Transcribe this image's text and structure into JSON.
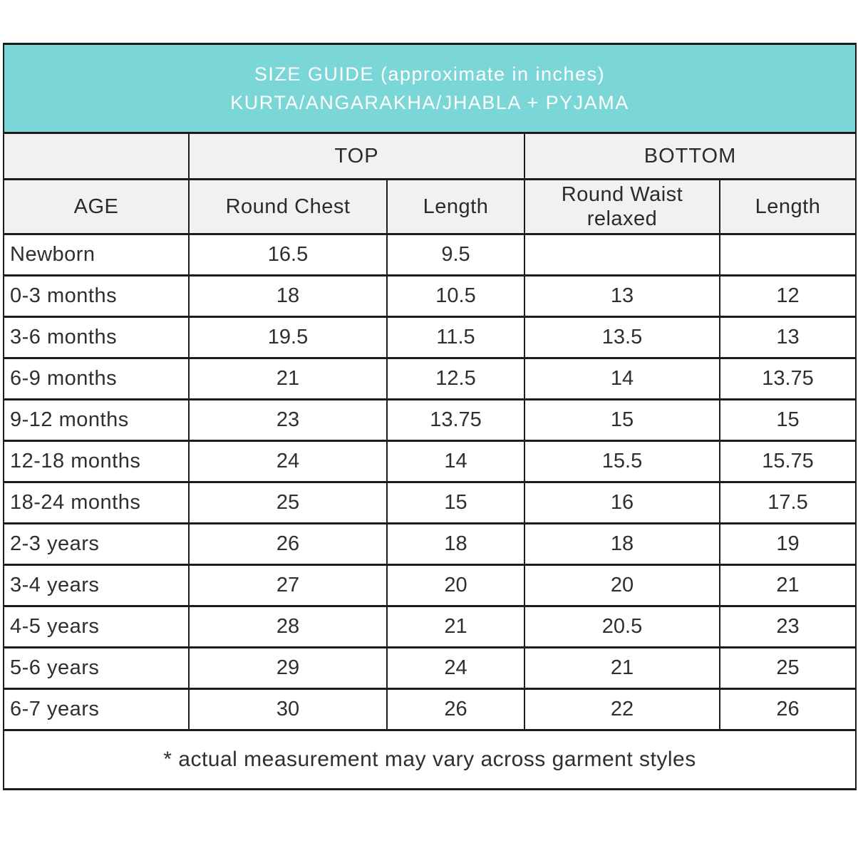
{
  "title": {
    "line1": "SIZE GUIDE (approximate in inches)",
    "line2": "KURTA/ANGARAKHA/JHABLA + PYJAMA"
  },
  "colors": {
    "title_bg": "#7BD6D7",
    "title_text": "#FFFFFF",
    "subheader_bg": "#F1F1F1",
    "border": "#1C1C1C",
    "body_bg": "#FFFFFF"
  },
  "table": {
    "group_headers": {
      "top": "TOP",
      "bottom": "BOTTOM"
    },
    "columns": [
      "AGE",
      "Round Chest",
      "Length",
      "Round Waist relaxed",
      "Length"
    ],
    "rows": [
      [
        "Newborn",
        "16.5",
        "9.5",
        "",
        ""
      ],
      [
        "0-3 months",
        "18",
        "10.5",
        "13",
        "12"
      ],
      [
        "3-6 months",
        "19.5",
        "11.5",
        "13.5",
        "13"
      ],
      [
        "6-9 months",
        "21",
        "12.5",
        "14",
        "13.75"
      ],
      [
        "9-12 months",
        "23",
        "13.75",
        "15",
        "15"
      ],
      [
        "12-18 months",
        "24",
        "14",
        "15.5",
        "15.75"
      ],
      [
        "18-24 months",
        "25",
        "15",
        "16",
        "17.5"
      ],
      [
        "2-3 years",
        "26",
        "18",
        "18",
        "19"
      ],
      [
        "3-4 years",
        "27",
        "20",
        "20",
        "21"
      ],
      [
        "4-5 years",
        "28",
        "21",
        "20.5",
        "23"
      ],
      [
        "5-6 years",
        "29",
        "24",
        "21",
        "25"
      ],
      [
        "6-7 years",
        "30",
        "26",
        "22",
        "26"
      ]
    ]
  },
  "footnote": "* actual measurement may vary across garment styles"
}
